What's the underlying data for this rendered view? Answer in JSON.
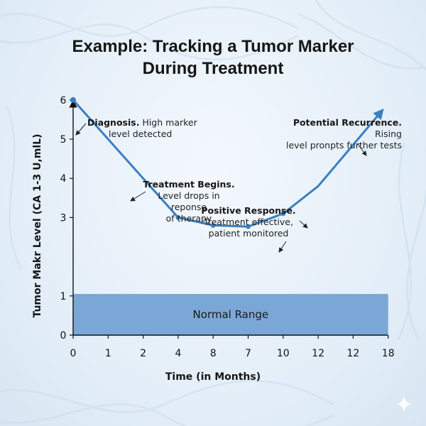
{
  "title_lines": [
    "Example: Tracking a Tumor Marker",
    "During Treatment"
  ],
  "chart_data": {
    "type": "line",
    "title": "Example: Tracking a Tumor Marker During Treatment",
    "xlabel": "Time (in Months)",
    "ylabel": "Tumor Makr Level (CA 1-3 U,mlL)",
    "x_tick_labels": [
      "0",
      "1",
      "2",
      "4",
      "8",
      "7",
      "10",
      "12",
      "12",
      "18"
    ],
    "y_ticks": [
      0,
      1,
      3,
      4,
      5,
      6
    ],
    "ylim": [
      0,
      6.9
    ],
    "series": [
      {
        "values": [
          6.0,
          4.0,
          3.0,
          2.8,
          2.77,
          3.1,
          3.8,
          5.7
        ],
        "x_positions": [
          0,
          2,
          3,
          4,
          5,
          6,
          7,
          8.8
        ],
        "marked_points": [
          0,
          2,
          3,
          4,
          5
        ],
        "color": "#3b7fc1"
      }
    ],
    "normal_range": {
      "label": "Normal Range",
      "from": 0,
      "to": 1.05,
      "color": "#7ba7d6"
    },
    "annotations": [
      {
        "bold": "Diagnosis.",
        "text_first": "High marker",
        "text_rest": [
          "level detected"
        ]
      },
      {
        "bold": "Treatment Begins.",
        "text_rest": [
          "Level drops in",
          "reponse",
          "of therapy"
        ]
      },
      {
        "bold": "Positive Response.",
        "text_rest": [
          "Treatment effective,",
          "patient monitored"
        ]
      },
      {
        "bold": "Potential Recurrence.",
        "text_first": "Rising",
        "text_rest": [
          "level pronpts further tests"
        ]
      }
    ],
    "grid": false,
    "legend": "none"
  }
}
